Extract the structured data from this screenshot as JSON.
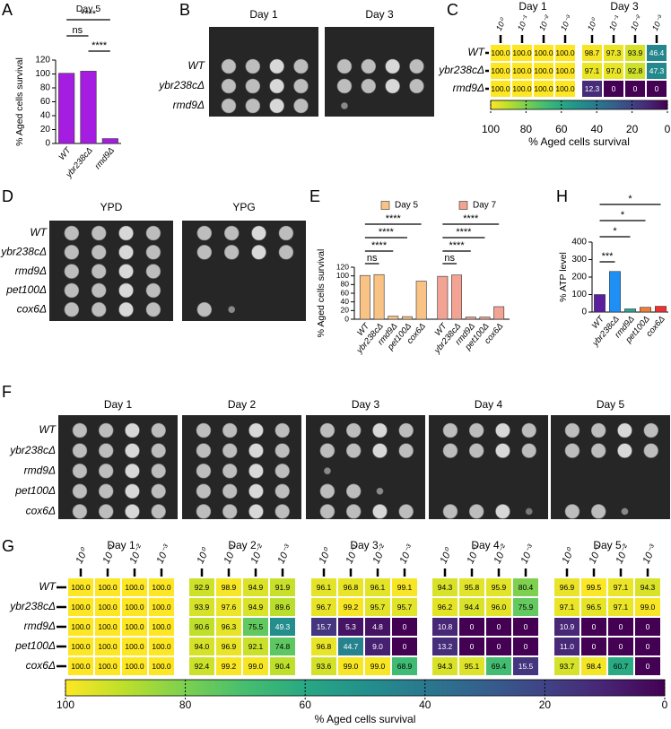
{
  "chart_data": [
    {
      "panel": "A",
      "type": "bar",
      "title": "Day 5",
      "categories": [
        "WT",
        "ybr238cΔ",
        "rmd9Δ"
      ],
      "values": [
        101,
        104,
        7
      ],
      "color": "#a51de0",
      "ylabel": "% Aged cells survival",
      "ylim": [
        0,
        120
      ],
      "yticks": [
        0,
        20,
        40,
        60,
        80,
        100,
        120
      ],
      "annotations": [
        "****",
        "ns",
        "****"
      ]
    },
    {
      "panel": "C",
      "type": "heatmap",
      "groups": [
        "Day 1",
        "Day 3"
      ],
      "columns": [
        "10⁰",
        "10⁻¹",
        "10⁻²",
        "10⁻³"
      ],
      "rows": [
        "WT",
        "ybr238cΔ",
        "rmd9Δ"
      ],
      "values": [
        [
          100,
          100,
          100,
          100,
          98.7,
          97.3,
          93.9,
          46.4
        ],
        [
          100,
          100,
          100,
          100,
          97.1,
          97.0,
          92.8,
          47.3
        ],
        [
          100,
          100,
          100,
          100,
          12.3,
          0,
          0,
          0
        ]
      ],
      "value_labels": [
        [
          "100.0",
          "100.0",
          "100.0",
          "100.0",
          "98.7",
          "97.3",
          "93.9",
          "46.4"
        ],
        [
          "100.0",
          "100.0",
          "100.0",
          "100.0",
          "97.1",
          "97.0",
          "92.8",
          "47.3"
        ],
        [
          "100.0",
          "100.0",
          "100.0",
          "100.0",
          "12.3",
          "0",
          "0",
          "0"
        ]
      ],
      "colorbar_label": "% Aged cells survival",
      "clim": [
        100,
        0
      ],
      "cticks": [
        100,
        80,
        60,
        40,
        20,
        0
      ]
    },
    {
      "panel": "E",
      "type": "bar",
      "categories": [
        "WT",
        "ybr238cΔ",
        "rmd9Δ",
        "pet100Δ",
        "cox6Δ"
      ],
      "series": [
        {
          "name": "Day 5",
          "color": "#f9c385",
          "values": [
            101,
            103,
            7,
            6,
            88
          ]
        },
        {
          "name": "Day 7",
          "color": "#f2a393",
          "values": [
            99,
            102,
            5,
            5,
            29
          ]
        }
      ],
      "ylabel": "% Aged cells survival",
      "ylim": [
        0,
        120
      ],
      "yticks": [
        0,
        20,
        40,
        60,
        80,
        100,
        120
      ],
      "annotations": [
        "ns",
        "****",
        "****",
        "****",
        "ns",
        "****",
        "****",
        "****"
      ]
    },
    {
      "panel": "H",
      "type": "bar",
      "categories": [
        "WT",
        "ybr238cΔ",
        "rmd9Δ",
        "pet100Δ",
        "cox6Δ"
      ],
      "values": [
        100,
        232,
        18,
        27,
        33
      ],
      "colors": [
        "#5b1f9e",
        "#1e8ff5",
        "#2aa79b",
        "#f07d3a",
        "#f03030"
      ],
      "ylabel": "% ATP level",
      "ylim": [
        0,
        400
      ],
      "yticks": [
        0,
        100,
        200,
        300,
        400
      ],
      "annotations": [
        "***",
        "*",
        "*",
        "*"
      ]
    },
    {
      "panel": "G",
      "type": "heatmap",
      "groups": [
        "Day 1",
        "Day 2",
        "Day 3",
        "Day 4",
        "Day 5"
      ],
      "columns": [
        "10⁰",
        "10⁻¹",
        "10⁻²",
        "10⁻³"
      ],
      "rows": [
        "WT",
        "ybr238cΔ",
        "rmd9Δ",
        "pet100Δ",
        "cox6Δ"
      ],
      "values": [
        [
          100,
          100,
          100,
          100,
          92.9,
          98.9,
          94.9,
          91.9,
          96.1,
          96.8,
          96.1,
          99.1,
          94.3,
          95.8,
          95.9,
          80.4,
          96.9,
          99.5,
          97.1,
          94.3
        ],
        [
          100,
          100,
          100,
          100,
          93.9,
          97.6,
          94.9,
          89.6,
          96.7,
          99.2,
          95.7,
          95.7,
          96.2,
          94.4,
          96.0,
          75.9,
          97.1,
          96.5,
          97.1,
          99.0
        ],
        [
          100,
          100,
          100,
          100,
          90.6,
          96.3,
          75.5,
          49.3,
          15.7,
          5.3,
          4.8,
          0,
          10.8,
          0,
          0,
          0,
          10.9,
          0,
          0,
          0
        ],
        [
          100,
          100,
          100,
          100,
          94.0,
          96.9,
          92.1,
          74.8,
          96.8,
          44.7,
          9.0,
          0,
          13.2,
          0,
          0,
          0,
          11.0,
          0,
          0,
          0
        ],
        [
          100,
          100,
          100,
          100,
          92.4,
          99.2,
          99.0,
          90.4,
          93.6,
          99.0,
          99.0,
          68.9,
          94.3,
          95.1,
          69.4,
          15.5,
          93.7,
          98.4,
          60.7,
          0
        ]
      ],
      "value_labels": [
        [
          "100.0",
          "100.0",
          "100.0",
          "100.0",
          "92.9",
          "98.9",
          "94.9",
          "91.9",
          "96.1",
          "96.8",
          "96.1",
          "99.1",
          "94.3",
          "95.8",
          "95.9",
          "80.4",
          "96.9",
          "99.5",
          "97.1",
          "94.3"
        ],
        [
          "100.0",
          "100.0",
          "100.0",
          "100.0",
          "93.9",
          "97.6",
          "94.9",
          "89.6",
          "96.7",
          "99.2",
          "95.7",
          "95.7",
          "96.2",
          "94.4",
          "96.0",
          "75.9",
          "97.1",
          "96.5",
          "97.1",
          "99.0"
        ],
        [
          "100.0",
          "100.0",
          "100.0",
          "100.0",
          "90.6",
          "96.3",
          "75.5",
          "49.3",
          "15.7",
          "5.3",
          "4.8",
          "0",
          "10.8",
          "0",
          "0",
          "0",
          "10.9",
          "0",
          "0",
          "0"
        ],
        [
          "100.0",
          "100.0",
          "100.0",
          "100.0",
          "94.0",
          "96.9",
          "92.1",
          "74.8",
          "96.8",
          "44.7",
          "9.0",
          "0",
          "13.2",
          "0",
          "0",
          "0",
          "11.0",
          "0",
          "0",
          "0"
        ],
        [
          "100.0",
          "100.0",
          "100.0",
          "100.0",
          "92.4",
          "99.2",
          "99.0",
          "90.4",
          "93.6",
          "99.0",
          "99.0",
          "68.9",
          "94.3",
          "95.1",
          "69.4",
          "15.5",
          "93.7",
          "98.4",
          "60.7",
          "0"
        ]
      ],
      "colorbar_label": "% Aged cells survival",
      "clim": [
        100,
        0
      ],
      "cticks": [
        100,
        80,
        60,
        40,
        20,
        0
      ]
    }
  ],
  "photo_panels": [
    {
      "panel": "B",
      "titles": [
        "Day 1",
        "Day 3"
      ],
      "rows": [
        "WT",
        "ybr238cΔ",
        "rmd9Δ"
      ]
    },
    {
      "panel": "D",
      "titles": [
        "YPD",
        "YPG"
      ],
      "rows": [
        "WT",
        "ybr238cΔ",
        "rmd9Δ",
        "pet100Δ",
        "cox6Δ"
      ]
    },
    {
      "panel": "F",
      "titles": [
        "Day 1",
        "Day 2",
        "Day 3",
        "Day 4",
        "Day 5"
      ],
      "rows": [
        "WT",
        "ybr238cΔ",
        "rmd9Δ",
        "pet100Δ",
        "cox6Δ"
      ]
    }
  ]
}
